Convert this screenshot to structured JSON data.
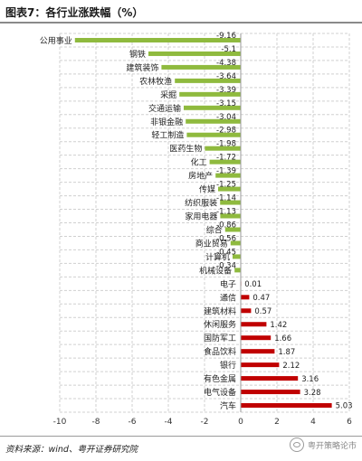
{
  "title": "图表7：各行业涨跌幅（%）",
  "source": "资料来源：wind、粤开证券研究院",
  "watermark": "粤开策略论市",
  "colors": {
    "negative": "#8fba3e",
    "positive": "#c00000",
    "grid": "#d0d0d0"
  },
  "icons": {
    "watermark": "wechat-icon"
  },
  "chart_data": {
    "type": "bar",
    "orientation": "horizontal",
    "categories": [
      "公用事业",
      "钢铁",
      "建筑装饰",
      "农林牧渔",
      "采掘",
      "交通运输",
      "非银金融",
      "轻工制造",
      "医药生物",
      "化工",
      "房地产",
      "传媒",
      "纺织服装",
      "家用电器",
      "综合",
      "商业贸易",
      "计算机",
      "机械设备",
      "电子",
      "通信",
      "建筑材料",
      "休闲服务",
      "国防军工",
      "食品饮料",
      "银行",
      "有色金属",
      "电气设备",
      "汽车"
    ],
    "values": [
      -9.16,
      -5.1,
      -4.38,
      -3.64,
      -3.39,
      -3.15,
      -3.04,
      -2.98,
      -1.98,
      -1.72,
      -1.39,
      -1.25,
      -1.14,
      -1.13,
      -0.86,
      -0.56,
      -0.45,
      -0.34,
      0.01,
      0.47,
      0.57,
      1.42,
      1.66,
      1.87,
      2.12,
      3.16,
      3.28,
      5.03
    ],
    "value_labels": [
      "-9.16",
      "-5.1",
      "-4.38",
      "-3.64",
      "-3.39",
      "-3.15",
      "-3.04",
      "-2.98",
      "-1.98",
      "-1.72",
      "-1.39",
      "-1.25",
      "-1.14",
      "-1.13",
      "-0.86",
      "-0.56",
      "-0.45",
      "-0.34",
      "0.01",
      "0.47",
      "0.57",
      "1.42",
      "1.66",
      "1.87",
      "2.12",
      "3.16",
      "3.28",
      "5.03"
    ],
    "xlim": [
      -10,
      6
    ],
    "xticks": [
      -10,
      -8,
      -6,
      -4,
      -2,
      0,
      2,
      4,
      6
    ],
    "xtick_labels": [
      "-10",
      "-8",
      "-6",
      "-4",
      "-2",
      "0",
      "2",
      "4",
      "6"
    ],
    "grid": true
  }
}
